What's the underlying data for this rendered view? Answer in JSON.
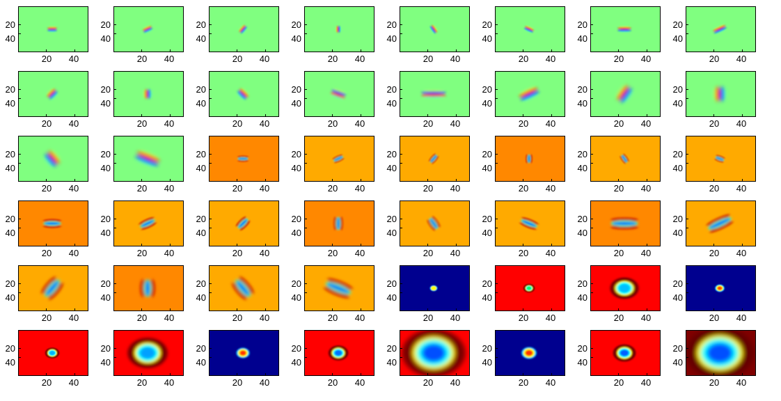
{
  "axis_tick_labels": {
    "y": [
      "20",
      "40"
    ],
    "x": [
      "20",
      "40"
    ]
  },
  "background_colors": {
    "green": "#80ff80",
    "orange": "#ffaa00",
    "dark_orange": "#ff8800",
    "blue": "#00008f",
    "red": "#ff0000",
    "dark_red": "#800000"
  },
  "filters": [
    {
      "type": "edge",
      "bg": "#80ff80",
      "angle": 0,
      "len": 14,
      "wid": 2.8,
      "pol": 1
    },
    {
      "type": "edge",
      "bg": "#80ff80",
      "angle": -25,
      "len": 14,
      "wid": 2.8,
      "pol": 1
    },
    {
      "type": "edge",
      "bg": "#80ff80",
      "angle": -50,
      "len": 13,
      "wid": 2.8,
      "pol": 1
    },
    {
      "type": "edge",
      "bg": "#80ff80",
      "angle": -90,
      "len": 10,
      "wid": 2.6,
      "pol": 1
    },
    {
      "type": "edge",
      "bg": "#80ff80",
      "angle": 55,
      "len": 13,
      "wid": 2.6,
      "pol": 1
    },
    {
      "type": "edge",
      "bg": "#80ff80",
      "angle": 25,
      "len": 14,
      "wid": 2.6,
      "pol": 1
    },
    {
      "type": "edge",
      "bg": "#80ff80",
      "angle": 0,
      "len": 20,
      "wid": 3,
      "pol": 1
    },
    {
      "type": "edge",
      "bg": "#80ff80",
      "angle": -25,
      "len": 20,
      "wid": 3,
      "pol": 1
    },
    {
      "type": "edge",
      "bg": "#80ff80",
      "angle": -45,
      "len": 16,
      "wid": 4,
      "pol": 1
    },
    {
      "type": "edge",
      "bg": "#80ff80",
      "angle": -90,
      "len": 14,
      "wid": 4,
      "pol": 1
    },
    {
      "type": "edge",
      "bg": "#80ff80",
      "angle": 45,
      "len": 17,
      "wid": 4,
      "pol": 1
    },
    {
      "type": "edge",
      "bg": "#80ff80",
      "angle": 20,
      "len": 22,
      "wid": 4,
      "pol": -1
    },
    {
      "type": "edge",
      "bg": "#80ff80",
      "angle": 0,
      "len": 36,
      "wid": 4,
      "pol": -1
    },
    {
      "type": "edge",
      "bg": "#80ff80",
      "angle": -25,
      "len": 30,
      "wid": 5,
      "pol": 1
    },
    {
      "type": "edge",
      "bg": "#80ff80",
      "angle": -55,
      "len": 26,
      "wid": 6,
      "pol": 1
    },
    {
      "type": "edge",
      "bg": "#80ff80",
      "angle": -90,
      "len": 22,
      "wid": 6,
      "pol": 1
    },
    {
      "type": "edge",
      "bg": "#80ff80",
      "angle": 50,
      "len": 24,
      "wid": 6,
      "pol": 1
    },
    {
      "type": "edge",
      "bg": "#80ff80",
      "angle": 22,
      "len": 36,
      "wid": 6,
      "pol": 1
    },
    {
      "type": "bar",
      "bg": "#ff8800",
      "angle": 0,
      "len": 16,
      "wid": 2
    },
    {
      "type": "bar",
      "bg": "#ffaa00",
      "angle": -25,
      "len": 16,
      "wid": 2
    },
    {
      "type": "bar",
      "bg": "#ffaa00",
      "angle": -50,
      "len": 15,
      "wid": 2
    },
    {
      "type": "bar",
      "bg": "#ff8800",
      "angle": -90,
      "len": 13,
      "wid": 2.2
    },
    {
      "type": "bar",
      "bg": "#ffaa00",
      "angle": 55,
      "len": 14,
      "wid": 2
    },
    {
      "type": "bar",
      "bg": "#ffaa00",
      "angle": 20,
      "len": 14,
      "wid": 2
    },
    {
      "type": "bar",
      "bg": "#ff8800",
      "angle": 0,
      "len": 26,
      "wid": 3
    },
    {
      "type": "bar",
      "bg": "#ffaa00",
      "angle": -25,
      "len": 24,
      "wid": 3
    },
    {
      "type": "bar",
      "bg": "#ffaa00",
      "angle": -45,
      "len": 20,
      "wid": 3
    },
    {
      "type": "bar",
      "bg": "#ff8800",
      "angle": -90,
      "len": 20,
      "wid": 3
    },
    {
      "type": "bar",
      "bg": "#ffaa00",
      "angle": 55,
      "len": 20,
      "wid": 3
    },
    {
      "type": "bar",
      "bg": "#ffaa00",
      "angle": 22,
      "len": 26,
      "wid": 3
    },
    {
      "type": "bar",
      "bg": "#ff8800",
      "angle": 0,
      "len": 40,
      "wid": 4
    },
    {
      "type": "bar",
      "bg": "#ffaa00",
      "angle": -25,
      "len": 38,
      "wid": 4
    },
    {
      "type": "bar",
      "bg": "#ffaa00",
      "angle": -50,
      "len": 32,
      "wid": 5
    },
    {
      "type": "bar",
      "bg": "#ff8800",
      "angle": -90,
      "len": 26,
      "wid": 5
    },
    {
      "type": "bar",
      "bg": "#ffaa00",
      "angle": 50,
      "len": 32,
      "wid": 5
    },
    {
      "type": "bar",
      "bg": "#ffaa00",
      "angle": 22,
      "len": 40,
      "wid": 5
    },
    {
      "type": "blob",
      "bg": "#00008f",
      "size": 4,
      "ring": false,
      "center": "#ffff00"
    },
    {
      "type": "blob",
      "bg": "#ff0000",
      "size": 4,
      "ring": true,
      "center": "#00ff60"
    },
    {
      "type": "blob",
      "bg": "#ff0000",
      "size": 10,
      "ring": true,
      "center": "#00c0ff"
    },
    {
      "type": "blob",
      "bg": "#00008f",
      "size": 5,
      "ring": false,
      "center": "#ff4000"
    },
    {
      "type": "blob",
      "bg": "#ff0000",
      "size": 5,
      "ring": true,
      "center": "#00b0ff"
    },
    {
      "type": "blob",
      "bg": "#ff0000",
      "size": 14,
      "ring": true,
      "center": "#00a0ff"
    },
    {
      "type": "blob",
      "bg": "#00008f",
      "size": 7,
      "ring": false,
      "center": "#ff3000"
    },
    {
      "type": "blob",
      "bg": "#ff0000",
      "size": 7,
      "ring": true,
      "center": "#0070ff"
    },
    {
      "type": "blob",
      "bg": "#ff0000",
      "size": 22,
      "ring": true,
      "center": "#0050ff"
    },
    {
      "type": "blob",
      "bg": "#00008f",
      "size": 8,
      "ring": false,
      "center": "#ff3000"
    },
    {
      "type": "blob",
      "bg": "#ff0000",
      "size": 8,
      "ring": true,
      "center": "#0060ff"
    },
    {
      "type": "blob",
      "bg": "#800000",
      "size": 24,
      "ring": true,
      "center": "#0050ff"
    }
  ]
}
